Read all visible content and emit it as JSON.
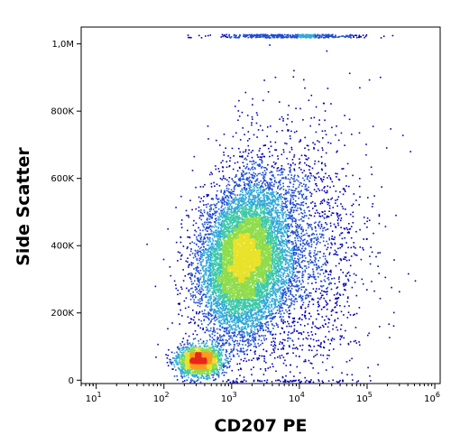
{
  "chart_data": {
    "type": "scatter",
    "title": "",
    "xlabel": "CD207 PE",
    "ylabel": "Side Scatter",
    "x_scale": "log",
    "xlim": [
      6,
      1200000
    ],
    "ylim": [
      -10000,
      1050000
    ],
    "x_ticks": [
      {
        "value": 10,
        "base": "10",
        "exp": "1"
      },
      {
        "value": 100,
        "base": "10",
        "exp": "2"
      },
      {
        "value": 1000,
        "base": "10",
        "exp": "3"
      },
      {
        "value": 10000,
        "base": "10",
        "exp": "4"
      },
      {
        "value": 100000,
        "base": "10",
        "exp": "5"
      },
      {
        "value": 1000000,
        "base": "10",
        "exp": "6"
      }
    ],
    "y_ticks": [
      {
        "value": 0,
        "label": "0"
      },
      {
        "value": 200000,
        "label": "200K"
      },
      {
        "value": 400000,
        "label": "400K"
      },
      {
        "value": 600000,
        "label": "600K"
      },
      {
        "value": 800000,
        "label": "800K"
      },
      {
        "value": 1000000,
        "label": "1,0M"
      }
    ],
    "density_colors": [
      "#0000b4",
      "#1e4bd2",
      "#2ea8d8",
      "#3dc9a8",
      "#8edc4a",
      "#e8e22a",
      "#ff9a1e",
      "#e8261c"
    ],
    "populations": [
      {
        "name": "low-SSC cluster",
        "center_x": 330,
        "center_y": 60000,
        "spread_log_x": 0.16,
        "spread_y": 22000,
        "count": 2100
      },
      {
        "name": "main CD207+ cluster",
        "center_x": 1500,
        "center_y": 360000,
        "spread_log_x": 0.32,
        "spread_y": 110000,
        "count": 9000
      },
      {
        "name": "diffuse tail",
        "center_x": 7000,
        "center_y": 380000,
        "spread_log_x": 0.55,
        "spread_y": 200000,
        "count": 2800
      }
    ],
    "grid": false,
    "legend": "none"
  }
}
